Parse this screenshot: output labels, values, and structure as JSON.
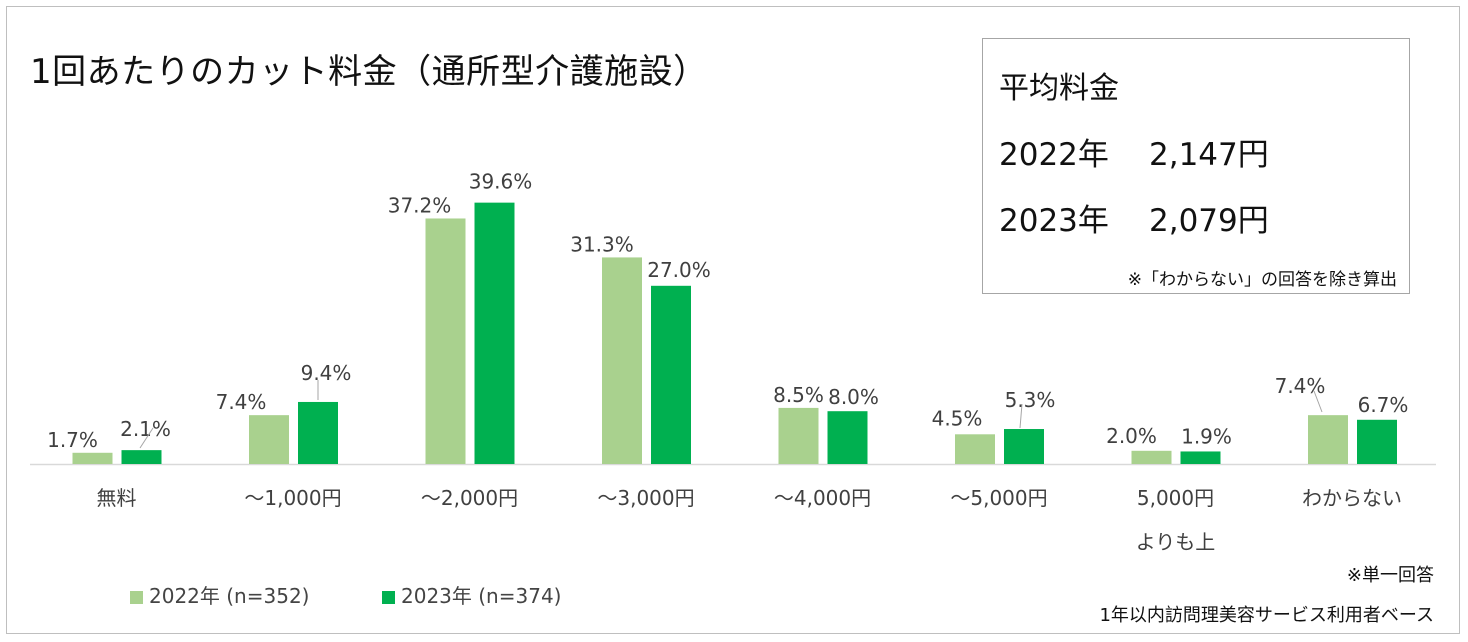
{
  "chart_data": {
    "type": "bar",
    "title": "1回あたりのカット料金（通所型介護施設）",
    "categories": [
      "無料",
      "～1,000円",
      "～2,000円",
      "～3,000円",
      "～4,000円",
      "～5,000円",
      "5,000円\nよりも上",
      "わからない"
    ],
    "series": [
      {
        "name": "2022年 (n=352)",
        "color": "#a9d18e",
        "values": [
          1.7,
          7.4,
          37.2,
          31.3,
          8.5,
          4.5,
          2.0,
          7.4
        ],
        "labels": [
          "1.7%",
          "7.4%",
          "37.2%",
          "31.3%",
          "8.5%",
          "4.5%",
          "2.0%",
          "7.4%"
        ]
      },
      {
        "name": "2023年 (n=374)",
        "color": "#00b050",
        "values": [
          2.1,
          9.4,
          39.6,
          27.0,
          8.0,
          5.3,
          1.9,
          6.7
        ],
        "labels": [
          "2.1%",
          "9.4%",
          "39.6%",
          "27.0%",
          "8.0%",
          "5.3%",
          "1.9%",
          "6.7%"
        ]
      }
    ],
    "ylim": [
      0,
      40
    ],
    "xlabel": "",
    "ylabel": "",
    "legend_position": "bottom-left"
  },
  "average_box": {
    "title": "平均料金",
    "rows": [
      {
        "year": "2022年",
        "price": "2,147円"
      },
      {
        "year": "2023年",
        "price": "2,079円"
      }
    ],
    "note": "※「わからない」の回答を除き算出"
  },
  "notes": {
    "single_answer": "※単一回答",
    "base": "1年以内訪問理美容サービス利用者ベース"
  }
}
